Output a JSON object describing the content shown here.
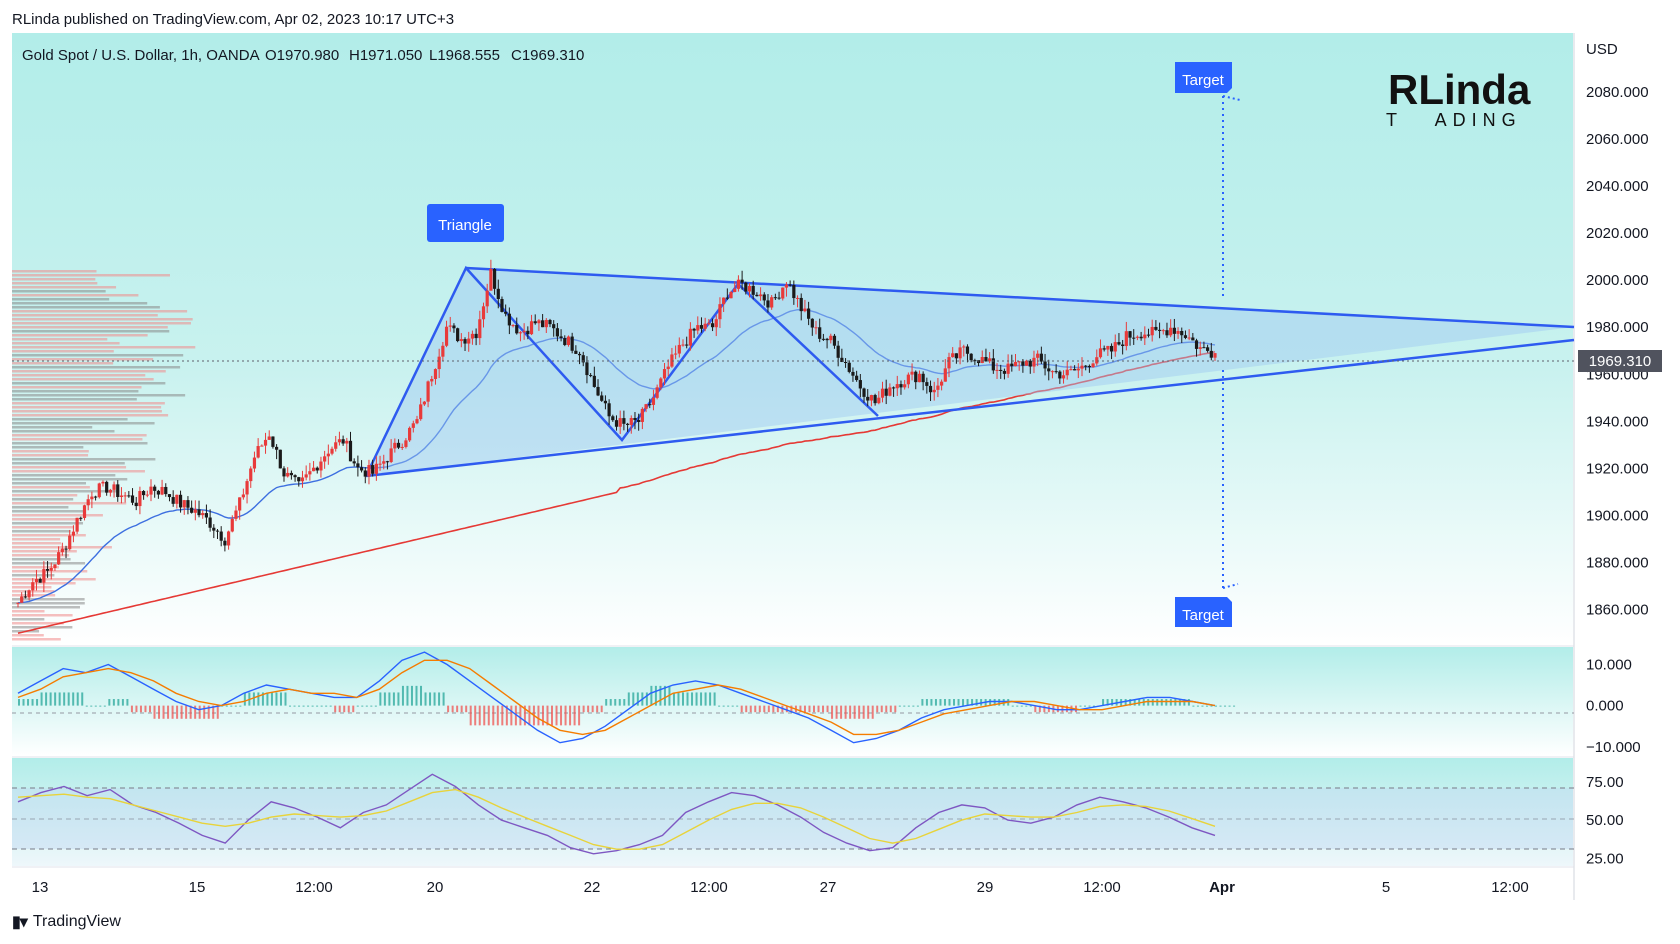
{
  "header": {
    "published_line": "RLinda published on TradingView.com, Apr 02, 2023 10:17 UTC+3"
  },
  "symbol_bar": {
    "symbol": "Gold Spot / U.S. Dollar, 1h, OANDA",
    "open": "O1970.980",
    "high": "H1971.050",
    "low": "L1968.555",
    "close": "C1969.310"
  },
  "labels": {
    "triangle": "Triangle",
    "target_up": "Target",
    "target_down": "Target",
    "logo_main": "RLinda",
    "logo_sub": "T   ADING",
    "currency": "USD",
    "last_price": "1969.310"
  },
  "footer": {
    "brand": "TradingView"
  },
  "colors": {
    "panel_bg_top": "#b2ede9",
    "blue_line": "#2e5bf0",
    "red_ma": "#e53935",
    "blue_ma": "#3d6fe0",
    "candle_up": "#e83a3a",
    "candle_down": "#1a1a1a",
    "label_bg": "#2962ff"
  },
  "chart_data": [
    {
      "type": "line",
      "title": "Gold Spot / U.S. Dollar, 1h, OANDA",
      "ylabel": "USD",
      "ylim": [
        1845,
        2105
      ],
      "y_ticks": [
        "2080.000",
        "2060.000",
        "2040.000",
        "2020.000",
        "2000.000",
        "1980.000",
        "1960.000",
        "1940.000",
        "1920.000",
        "1900.000",
        "1880.000",
        "1860.000"
      ],
      "x_ticks": [
        "13",
        "15",
        "12:00",
        "20",
        "22",
        "12:00",
        "27",
        "29",
        "12:00",
        "Apr",
        "5",
        "12:00"
      ],
      "series": [
        {
          "values": [
            1863,
            1872,
            1876,
            1885,
            1898,
            1910,
            1912,
            1909,
            1906,
            1912,
            1910,
            1905,
            1902,
            1897,
            1890,
            1905,
            1925,
            1935,
            1918,
            1912,
            1920,
            1928,
            1932,
            1920,
            1918,
            1925,
            1932,
            1940,
            1960,
            1980,
            1975,
            1978,
            2003,
            1985,
            1978,
            1982,
            1980,
            1975,
            1970,
            1955,
            1942,
            1938,
            1940,
            1950,
            1963,
            1973,
            1980,
            1980,
            1995,
            1998,
            1995,
            1990,
            2000,
            1988,
            1978,
            1974,
            1965,
            1955,
            1948,
            1955,
            1958,
            1960,
            1952,
            1965,
            1970,
            1967,
            1963,
            1962,
            1965,
            1966,
            1961,
            1960,
            1963,
            1968,
            1970,
            1976,
            1978,
            1977,
            1980,
            1977,
            1971,
            1969
          ]
        }
      ],
      "annotations": [
        "Triangle",
        "Target",
        "Target"
      ]
    },
    {
      "type": "line",
      "ylim": [
        -12,
        14
      ],
      "y_ticks": [
        "10.000",
        "0.000",
        "−10.000"
      ],
      "series": [
        {
          "values": [
            3,
            6,
            9,
            8,
            10,
            7,
            4,
            1,
            -1,
            0,
            3,
            5,
            4,
            3,
            2,
            2,
            6,
            11,
            13,
            10,
            6,
            2,
            -2,
            -6,
            -9,
            -8,
            -5,
            -1,
            3,
            5,
            6,
            5,
            3,
            1,
            -1,
            -3,
            -6,
            -9,
            -8,
            -6,
            -3,
            -1,
            0,
            1,
            1,
            0,
            -1,
            -1,
            0,
            1,
            2,
            2,
            1,
            0
          ]
        },
        {
          "values": [
            2,
            4,
            7,
            8,
            9,
            8,
            6,
            3,
            1,
            0,
            1,
            3,
            4,
            3,
            3,
            2,
            4,
            8,
            11,
            11,
            9,
            5,
            1,
            -3,
            -6,
            -7,
            -6,
            -3,
            0,
            3,
            4,
            5,
            4,
            2,
            0,
            -2,
            -4,
            -7,
            -7,
            -6,
            -4,
            -2,
            -1,
            0,
            1,
            1,
            0,
            -1,
            -1,
            0,
            1,
            1,
            1,
            0
          ]
        }
      ]
    },
    {
      "type": "line",
      "ylim": [
        20,
        90
      ],
      "y_ticks": [
        "75.00",
        "50.00",
        "25.00"
      ],
      "series": [
        {
          "values": [
            62,
            68,
            72,
            66,
            70,
            60,
            55,
            48,
            40,
            35,
            50,
            62,
            58,
            52,
            45,
            55,
            60,
            70,
            80,
            72,
            60,
            50,
            45,
            40,
            32,
            28,
            30,
            34,
            40,
            55,
            62,
            68,
            66,
            60,
            52,
            42,
            35,
            30,
            32,
            45,
            55,
            60,
            58,
            50,
            48,
            52,
            60,
            65,
            62,
            58,
            52,
            45,
            40
          ]
        },
        {
          "values": [
            65,
            66,
            67,
            65,
            64,
            60,
            56,
            52,
            48,
            46,
            48,
            52,
            54,
            53,
            52,
            53,
            56,
            62,
            68,
            70,
            65,
            58,
            52,
            46,
            40,
            34,
            31,
            31,
            34,
            42,
            50,
            57,
            61,
            61,
            58,
            52,
            45,
            38,
            35,
            38,
            44,
            50,
            54,
            53,
            52,
            52,
            55,
            59,
            60,
            59,
            56,
            51,
            46
          ]
        }
      ]
    }
  ]
}
